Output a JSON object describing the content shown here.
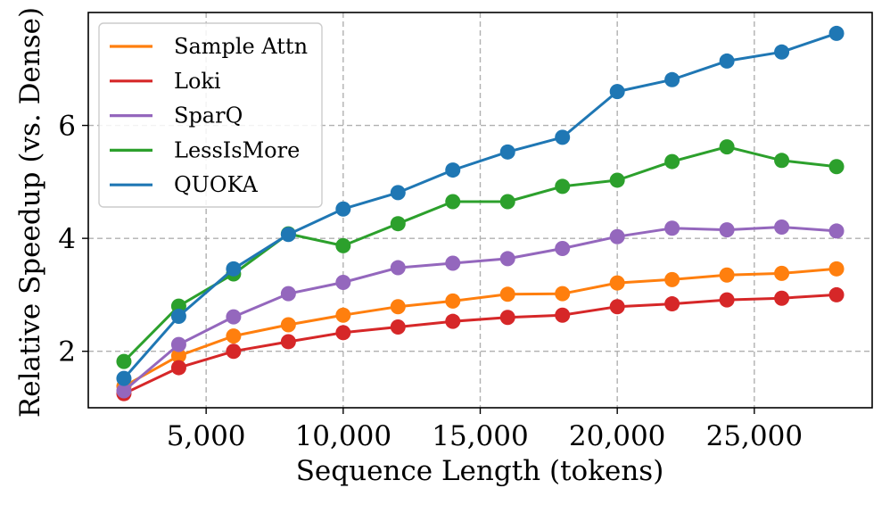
{
  "chart_data": {
    "type": "line",
    "title": "",
    "xlabel": "Sequence Length (tokens)",
    "ylabel": "Relative Speedup (vs. Dense)",
    "xlim": [
      700,
      29300
    ],
    "ylim": [
      1.0,
      8.0
    ],
    "x_ticks": [
      5000,
      10000,
      15000,
      20000,
      25000
    ],
    "x_tick_labels": [
      "5,000",
      "10,000",
      "15,000",
      "20,000",
      "25,000"
    ],
    "y_ticks": [
      2,
      4,
      6
    ],
    "y_tick_labels": [
      "2",
      "4",
      "6"
    ],
    "grid": true,
    "legend_position": "top-left",
    "x": [
      2000,
      4000,
      6000,
      8000,
      10000,
      12000,
      14000,
      16000,
      18000,
      20000,
      22000,
      24000,
      26000,
      28000
    ],
    "series": [
      {
        "name": "Sample Attn",
        "color": "#ff7f0e",
        "values": [
          1.38,
          1.92,
          2.27,
          2.47,
          2.64,
          2.79,
          2.89,
          3.01,
          3.02,
          3.21,
          3.27,
          3.35,
          3.38,
          3.46
        ]
      },
      {
        "name": "Loki",
        "color": "#d62728",
        "values": [
          1.25,
          1.71,
          2.0,
          2.17,
          2.33,
          2.43,
          2.53,
          2.6,
          2.64,
          2.79,
          2.84,
          2.91,
          2.94,
          3.0
        ]
      },
      {
        "name": "SparQ",
        "color": "#9467bd",
        "values": [
          1.3,
          2.12,
          2.61,
          3.02,
          3.22,
          3.48,
          3.56,
          3.64,
          3.82,
          4.03,
          4.18,
          4.15,
          4.2,
          4.13
        ]
      },
      {
        "name": "LessIsMore",
        "color": "#2ca02c",
        "values": [
          1.82,
          2.8,
          3.37,
          4.08,
          3.87,
          4.26,
          4.65,
          4.65,
          4.92,
          5.03,
          5.36,
          5.62,
          5.38,
          5.27
        ]
      },
      {
        "name": "QUOKA",
        "color": "#1f77b4",
        "values": [
          1.52,
          2.62,
          3.46,
          4.07,
          4.52,
          4.81,
          5.21,
          5.53,
          5.79,
          6.6,
          6.81,
          7.14,
          7.3,
          7.63
        ]
      }
    ]
  }
}
